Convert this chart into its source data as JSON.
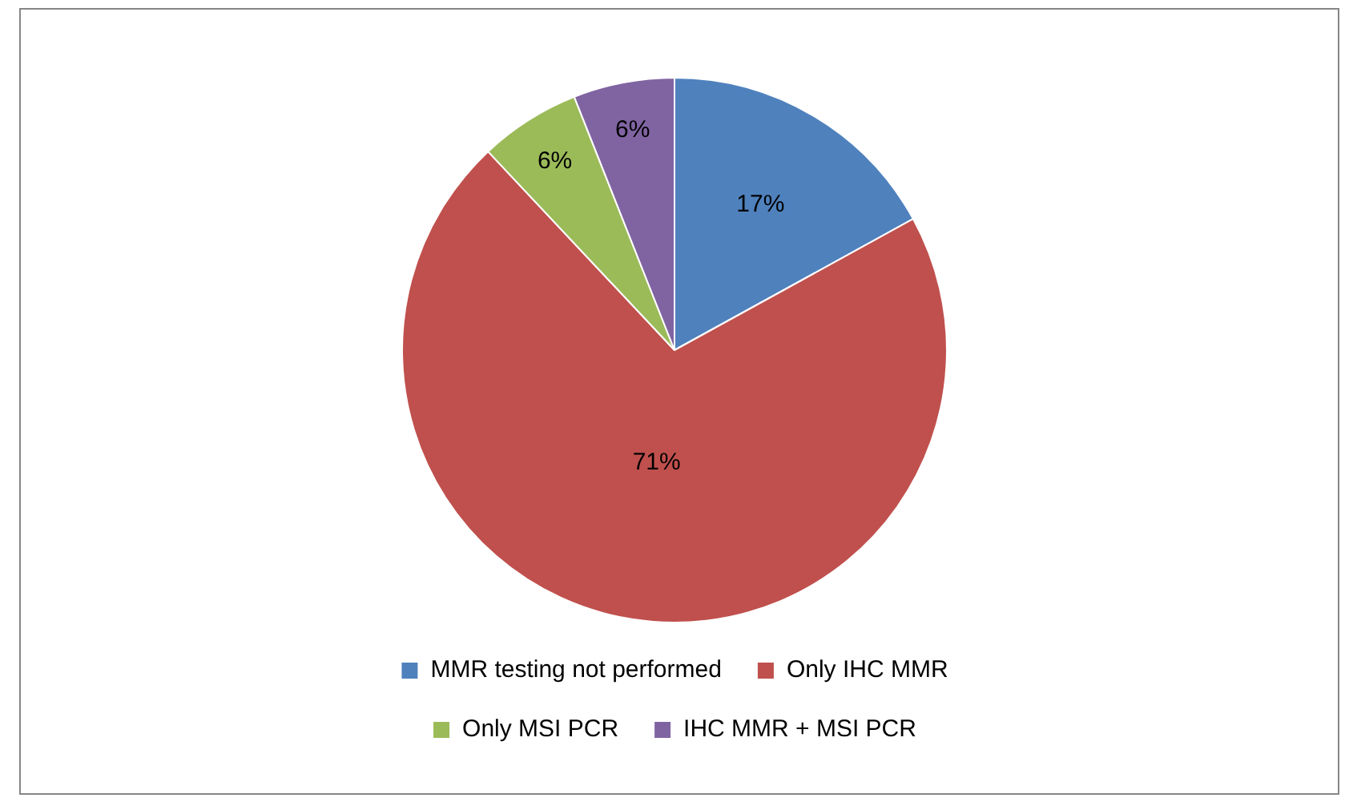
{
  "chart_data": {
    "type": "pie",
    "categories": [
      "MMR testing not performed",
      "Only IHC MMR",
      "Only MSI PCR",
      "IHC MMR + MSI PCR"
    ],
    "values": [
      17,
      71,
      6,
      6
    ],
    "colors": [
      "#4f81bd",
      "#c0504d",
      "#9bbb59",
      "#8064a2"
    ],
    "value_labels": [
      "17%",
      "71%",
      "6%",
      "6%"
    ],
    "legend": "bottom"
  }
}
